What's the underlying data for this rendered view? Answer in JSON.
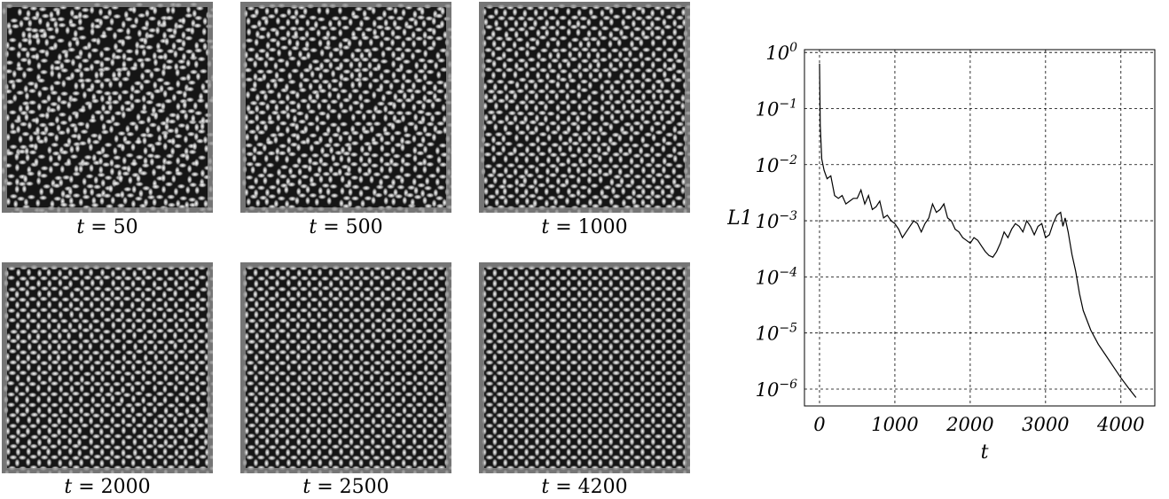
{
  "panels": [
    {
      "caption_var": "t",
      "caption_eq": "= 50",
      "disorder": 1.0
    },
    {
      "caption_var": "t",
      "caption_eq": "= 500",
      "disorder": 0.62
    },
    {
      "caption_var": "t",
      "caption_eq": "= 1000",
      "disorder": 0.42
    },
    {
      "caption_var": "t",
      "caption_eq": "= 2000",
      "disorder": 0.26
    },
    {
      "caption_var": "t",
      "caption_eq": "= 2500",
      "disorder": 0.18
    },
    {
      "caption_var": "t",
      "caption_eq": "= 4200",
      "disorder": 0.0
    }
  ],
  "chart_data": {
    "type": "line",
    "xlabel": "t",
    "ylabel": "L1",
    "y_scale": "log",
    "xlim": [
      -200,
      4450
    ],
    "ylim_exp": [
      -6.3,
      0.05
    ],
    "x_ticks": [
      "0",
      "1000",
      "2000",
      "3000",
      "4000"
    ],
    "y_ticks": [
      "10",
      "10",
      "10",
      "10",
      "10",
      "10",
      "10"
    ],
    "y_tick_exponents": [
      "0",
      "−1",
      "−2",
      "−3",
      "−4",
      "−5",
      "−6"
    ],
    "grid": true,
    "series": [
      {
        "x": [
          0,
          10,
          30,
          60,
          100,
          150,
          200,
          250,
          300,
          350,
          400,
          450,
          500,
          550,
          600,
          650,
          700,
          750,
          800,
          850,
          900,
          950,
          1000,
          1050,
          1100,
          1150,
          1200,
          1250,
          1300,
          1350,
          1400,
          1450,
          1500,
          1550,
          1600,
          1650,
          1700,
          1750,
          1800,
          1850,
          1900,
          1950,
          2000,
          2050,
          2100,
          2150,
          2200,
          2250,
          2300,
          2350,
          2400,
          2450,
          2500,
          2550,
          2600,
          2650,
          2700,
          2750,
          2800,
          2850,
          2900,
          2950,
          3000,
          3050,
          3100,
          3150,
          3200,
          3230,
          3260,
          3300,
          3350,
          3400,
          3450,
          3500,
          3600,
          3700,
          3800,
          3900,
          4000,
          4100,
          4200
        ],
        "y_exp": [
          -0.2,
          -1.3,
          -1.9,
          -2.1,
          -2.25,
          -2.2,
          -2.55,
          -2.6,
          -2.55,
          -2.7,
          -2.65,
          -2.6,
          -2.6,
          -2.45,
          -2.7,
          -2.55,
          -2.8,
          -2.75,
          -2.65,
          -2.95,
          -2.9,
          -3.0,
          -3.05,
          -3.15,
          -3.3,
          -3.2,
          -3.1,
          -3.0,
          -3.05,
          -3.2,
          -3.05,
          -2.95,
          -2.7,
          -2.85,
          -2.8,
          -2.7,
          -2.95,
          -3.0,
          -3.15,
          -3.2,
          -3.3,
          -3.35,
          -3.4,
          -3.3,
          -3.35,
          -3.45,
          -3.55,
          -3.62,
          -3.65,
          -3.55,
          -3.4,
          -3.2,
          -3.3,
          -3.15,
          -3.05,
          -3.1,
          -3.2,
          -3.0,
          -3.1,
          -3.25,
          -3.1,
          -3.05,
          -3.3,
          -3.25,
          -3.05,
          -2.9,
          -2.85,
          -3.1,
          -2.95,
          -3.2,
          -3.6,
          -3.9,
          -4.3,
          -4.6,
          -4.95,
          -5.2,
          -5.4,
          -5.6,
          -5.8,
          -5.98,
          -6.15
        ]
      }
    ]
  }
}
